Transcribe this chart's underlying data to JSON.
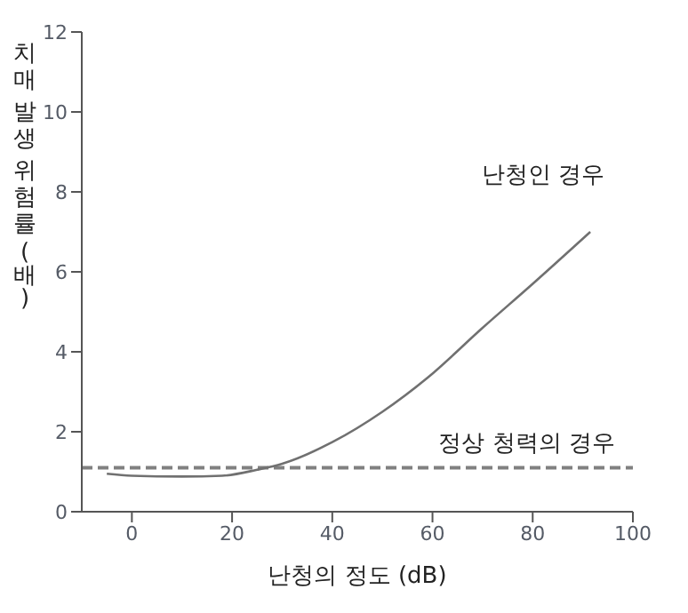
{
  "chart_data": {
    "type": "line",
    "xlabel": "난청의 정도 (dB)",
    "ylabel": "치매 발생 위험률 (배)",
    "xlim": [
      -10,
      100
    ],
    "xticks": [
      0,
      20,
      40,
      60,
      80,
      100
    ],
    "ylim": [
      0,
      12
    ],
    "yticks": [
      0,
      2,
      4,
      6,
      8,
      10,
      12
    ],
    "x": [
      -5,
      0,
      10,
      18,
      25,
      30,
      40,
      50,
      59,
      70,
      80,
      91.5
    ],
    "series": [
      {
        "name": "난청인 경우",
        "color": "#707070",
        "values": [
          0.95,
          0.9,
          0.88,
          0.9,
          1.05,
          1.2,
          1.74,
          2.5,
          3.35,
          4.6,
          5.7,
          7.0
        ]
      }
    ],
    "ref_lines": [
      {
        "axis": "y",
        "value": 1.1,
        "label": "정상 청력의 경우",
        "color": "#808080",
        "line_style": "dashed"
      }
    ],
    "grid": false,
    "legend": false,
    "marker": "none",
    "line_style": "solid"
  }
}
